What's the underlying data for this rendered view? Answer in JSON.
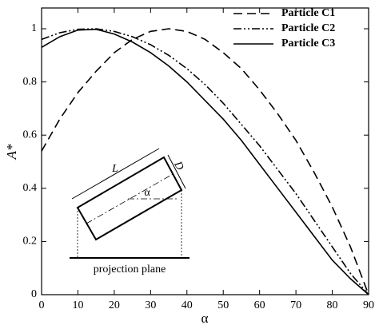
{
  "chart_data": {
    "type": "line",
    "x_label": "α",
    "y_label": "A*",
    "x": [
      0,
      5,
      10,
      15,
      20,
      25,
      30,
      35,
      40,
      45,
      50,
      55,
      60,
      65,
      70,
      75,
      80,
      85,
      90
    ],
    "series": [
      {
        "name": "Particle C1",
        "color": "#000000",
        "style": "dashed",
        "values": [
          0.54,
          0.66,
          0.76,
          0.84,
          0.91,
          0.96,
          0.99,
          1.0,
          0.99,
          0.96,
          0.91,
          0.85,
          0.77,
          0.68,
          0.58,
          0.46,
          0.33,
          0.18,
          0
        ]
      },
      {
        "name": "Particle C2",
        "color": "#000000",
        "style": "dash-dot-dot",
        "values": [
          0.96,
          0.985,
          0.998,
          1.0,
          0.99,
          0.97,
          0.94,
          0.9,
          0.85,
          0.79,
          0.72,
          0.64,
          0.56,
          0.47,
          0.38,
          0.28,
          0.18,
          0.08,
          0
        ]
      },
      {
        "name": "Particle C3",
        "color": "#000000",
        "style": "solid",
        "values": [
          0.93,
          0.97,
          0.995,
          0.998,
          0.98,
          0.95,
          0.91,
          0.86,
          0.8,
          0.73,
          0.66,
          0.58,
          0.49,
          0.4,
          0.31,
          0.22,
          0.13,
          0.06,
          0
        ]
      }
    ],
    "xlim": [
      0,
      90
    ],
    "xticks": [
      0,
      10,
      20,
      30,
      40,
      50,
      60,
      70,
      80,
      90
    ],
    "ylim": [
      0,
      1
    ],
    "yticks": [
      0,
      0.2,
      0.4,
      0.6,
      0.8,
      1
    ],
    "legend": "upper right",
    "inset": {
      "length_label": "L",
      "width_label": "D",
      "angle_label": "α",
      "plane_label": "projection plane"
    }
  }
}
